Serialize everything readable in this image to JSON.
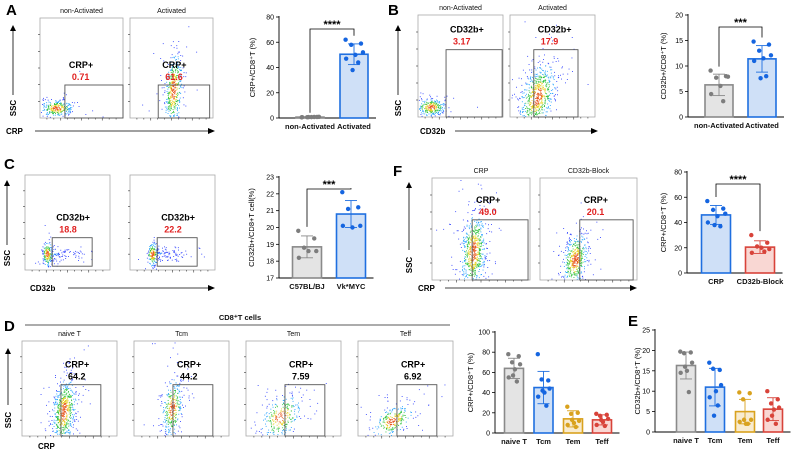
{
  "panel_labels": {
    "A": "A",
    "B": "B",
    "C": "C",
    "D": "D",
    "E": "E",
    "F": "F"
  },
  "palette": {
    "grey": {
      "fill": "#e4e4e4",
      "stroke": "#8a8a8a",
      "dot": "#7d7d7d"
    },
    "blue": {
      "fill": "#cfe0f7",
      "stroke": "#1f6fe0",
      "dot": "#1565e0"
    },
    "yellow": {
      "fill": "#f8ebcf",
      "stroke": "#d9a21e",
      "dot": "#d9a21e"
    },
    "red": {
      "fill": "#f9d7d3",
      "stroke": "#d8433a",
      "dot": "#d8433a"
    }
  },
  "flow": [
    {
      "panel": "A",
      "x_axis": "CRP",
      "y_axis": "SSC",
      "plots": [
        {
          "title": "non-Activated",
          "gate_label": "CRP+",
          "gate_value": "0.71"
        },
        {
          "title": "Activated",
          "gate_label": "CRP+",
          "gate_value": "61.6"
        }
      ]
    },
    {
      "panel": "B",
      "x_axis": "CD32b",
      "y_axis": "SSC",
      "plots": [
        {
          "title": "non-Activated",
          "gate_label": "CD32b+",
          "gate_value": "3.17"
        },
        {
          "title": "Activated",
          "gate_label": "CD32b+",
          "gate_value": "17.9"
        }
      ]
    },
    {
      "panel": "C",
      "x_axis": "CD32b",
      "y_axis": "SSC",
      "plots": [
        {
          "title": "",
          "gate_label": "CD32b+",
          "gate_value": "18.8"
        },
        {
          "title": "",
          "gate_label": "CD32b+",
          "gate_value": "22.2"
        }
      ]
    },
    {
      "panel": "F",
      "x_axis": "CRP",
      "y_axis": "SSC",
      "plots": [
        {
          "title": "CRP",
          "gate_label": "CRP+",
          "gate_value": "49.0"
        },
        {
          "title": "CD32b-Block",
          "gate_label": "CRP+",
          "gate_value": "20.1"
        }
      ]
    },
    {
      "panel": "D",
      "x_axis": "CRP",
      "y_axis": "SSC",
      "header": "CD8⁺T cells",
      "plots": [
        {
          "title": "naive T",
          "gate_label": "CRP+",
          "gate_value": "64.2"
        },
        {
          "title": "Tcm",
          "gate_label": "CRP+",
          "gate_value": "44.2"
        },
        {
          "title": "Tem",
          "gate_label": "CRP+",
          "gate_value": "7.59"
        },
        {
          "title": "Teff",
          "gate_label": "CRP+",
          "gate_value": "6.92"
        }
      ]
    }
  ],
  "chart_data": [
    {
      "panel": "A",
      "type": "bar",
      "title": "",
      "xlabel": "",
      "ylabel": "CRP+/CD8⁺T (%)",
      "ylim": [
        0,
        80
      ],
      "yticks": [
        0,
        20,
        40,
        60,
        80
      ],
      "categories": [
        "non-Activated",
        "Activated"
      ],
      "significance": "****",
      "series": [
        {
          "name": "non-Activated",
          "color": "grey",
          "mean": 0.7,
          "sd": 0.3,
          "points": [
            0.5,
            0.8,
            0.6,
            0.9,
            0.7,
            0.6,
            0.8,
            0.7
          ]
        },
        {
          "name": "Activated",
          "color": "blue",
          "mean": 50.5,
          "sd": 8.2,
          "points": [
            62,
            59,
            58,
            52,
            50,
            47,
            44,
            38
          ]
        }
      ]
    },
    {
      "panel": "B",
      "type": "bar",
      "title": "",
      "xlabel": "",
      "ylabel": "CD32b+/CD8⁺T (%)",
      "ylim": [
        0,
        20
      ],
      "yticks": [
        0,
        5,
        10,
        15,
        20
      ],
      "categories": [
        "non-Activated",
        "Activated"
      ],
      "significance": "***",
      "series": [
        {
          "name": "non-Activated",
          "color": "grey",
          "mean": 6.3,
          "sd": 2.1,
          "points": [
            9.1,
            8.0,
            7.7,
            7.9,
            6.1,
            4.5,
            3.1
          ]
        },
        {
          "name": "Activated",
          "color": "blue",
          "mean": 11.4,
          "sd": 2.6,
          "points": [
            14.8,
            14.2,
            13.0,
            12.1,
            11.5,
            11.0,
            8.0,
            7.6
          ]
        }
      ]
    },
    {
      "panel": "C",
      "type": "bar",
      "title": "",
      "xlabel": "",
      "ylabel": "CD32b+/CD8+T cell(%)",
      "ylim": [
        17,
        23
      ],
      "yticks": [
        17,
        18,
        19,
        20,
        21,
        22,
        23
      ],
      "categories": [
        "C57BL/BJ",
        "Vk*MYC"
      ],
      "significance": "***",
      "series": [
        {
          "name": "C57BL/BJ",
          "color": "grey",
          "mean": 18.85,
          "sd": 0.65,
          "points": [
            19.8,
            19.35,
            18.8,
            18.6,
            18.6,
            18.2
          ]
        },
        {
          "name": "Vk*MYC",
          "color": "blue",
          "mean": 20.8,
          "sd": 0.8,
          "points": [
            22.1,
            21.2,
            21.1,
            20.1,
            20.0,
            20.1
          ]
        }
      ]
    },
    {
      "panel": "F",
      "type": "bar",
      "title": "",
      "xlabel": "",
      "ylabel": "CRP+/CD8⁺T (%)",
      "ylim": [
        0,
        80
      ],
      "yticks": [
        0,
        20,
        40,
        60,
        80
      ],
      "categories": [
        "CRP",
        "CD32b-Block"
      ],
      "significance": "****",
      "series": [
        {
          "name": "CRP",
          "color": "blue",
          "mean": 46,
          "sd": 7.5,
          "points": [
            57,
            51,
            50,
            47,
            45,
            40,
            37,
            38
          ]
        },
        {
          "name": "CD32b-Block",
          "color": "red",
          "mean": 20.5,
          "sd": 5,
          "points": [
            30,
            24,
            21,
            19,
            20,
            16,
            17
          ]
        }
      ]
    },
    {
      "panel": "D",
      "type": "bar",
      "title": "",
      "xlabel": "",
      "ylabel": "CRP+/CD8⁺T (%)",
      "ylim": [
        0,
        100
      ],
      "yticks": [
        0,
        20,
        40,
        60,
        80,
        100
      ],
      "categories": [
        "naive T",
        "Tcm",
        "Tem",
        "Teff"
      ],
      "significance": "",
      "series": [
        {
          "name": "naive T",
          "color": "grey",
          "mean": 64,
          "sd": 10,
          "points": [
            78,
            76,
            70,
            68,
            63,
            55,
            51,
            57
          ]
        },
        {
          "name": "Tcm",
          "color": "blue",
          "mean": 45,
          "sd": 16,
          "points": [
            78,
            52,
            53,
            44,
            40,
            36,
            27,
            42
          ]
        },
        {
          "name": "Tem",
          "color": "yellow",
          "mean": 14,
          "sd": 8,
          "points": [
            26,
            20,
            19,
            12,
            10,
            8,
            6,
            13
          ]
        },
        {
          "name": "Teff",
          "color": "red",
          "mean": 13,
          "sd": 5,
          "points": [
            19,
            18,
            17,
            14,
            11,
            8,
            7,
            13
          ]
        }
      ]
    },
    {
      "panel": "E",
      "type": "bar",
      "title": "",
      "xlabel": "",
      "ylabel": "CD32b+/CD8⁺T (%)",
      "ylim": [
        0,
        25
      ],
      "yticks": [
        0,
        5,
        10,
        15,
        20,
        25
      ],
      "categories": [
        "naive T",
        "Tcm",
        "Tem",
        "Teff"
      ],
      "significance": "",
      "series": [
        {
          "name": "naive T",
          "color": "grey",
          "mean": 16.3,
          "sd": 3.3,
          "points": [
            19.7,
            19.5,
            19.3,
            17,
            15,
            14.5,
            9.8,
            16
          ]
        },
        {
          "name": "Tcm",
          "color": "blue",
          "mean": 11,
          "sd": 4.6,
          "points": [
            17,
            15.2,
            15.5,
            11.5,
            10,
            8.5,
            6.5,
            4
          ]
        },
        {
          "name": "Tem",
          "color": "yellow",
          "mean": 5,
          "sd": 3,
          "points": [
            9.7,
            9.5,
            8,
            3,
            2,
            2.5,
            2,
            3
          ]
        },
        {
          "name": "Teff",
          "color": "red",
          "mean": 5.6,
          "sd": 2.8,
          "points": [
            10,
            8,
            7,
            6,
            5.5,
            3,
            2,
            4
          ]
        }
      ]
    }
  ]
}
